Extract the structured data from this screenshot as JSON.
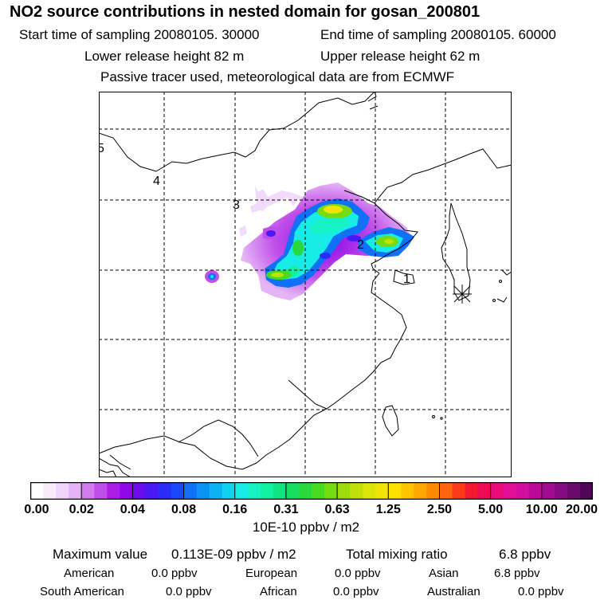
{
  "header": {
    "title": "NO2 source contributions in nested domain for gosan_200801",
    "start_label": "Start time of sampling 20080105. 30000",
    "end_label": "End time of sampling 20080105. 60000",
    "lower_label": "Lower release height   82 m",
    "upper_label": "Upper release height   62 m",
    "note": "Passive tracer used, meteorological data are from ECMWF"
  },
  "map": {
    "markers": [
      "1",
      "2",
      "3",
      "4",
      "5"
    ],
    "receptor_symbol": "star-receptor-icon"
  },
  "colorbar": {
    "ticks": [
      "0.00",
      "0.02",
      "0.04",
      "0.08",
      "0.16",
      "0.31",
      "0.63",
      "1.25",
      "2.50",
      "5.00",
      "10.00",
      "20.00"
    ],
    "units": "10E-10 ppbv / m2",
    "colors": [
      "#ffffff",
      "#f8ecfc",
      "#f0d4fa",
      "#e4b4f6",
      "#d27cf0",
      "#c04ee9",
      "#ac1ee6",
      "#8e08e8",
      "#6a0cec",
      "#4a18f2",
      "#2a2cf8",
      "#1848fa",
      "#1070f6",
      "#0a92f4",
      "#0cb2f2",
      "#10d2f0",
      "#18ece6",
      "#16f2c4",
      "#12f0a2",
      "#10e680",
      "#18de60",
      "#28d83c",
      "#48da20",
      "#74dc10",
      "#9cdc0a",
      "#c0e00a",
      "#dce408",
      "#f0e406",
      "#fee000",
      "#ffc400",
      "#ffa600",
      "#ff8a00",
      "#ff6410",
      "#fc3c18",
      "#f41830",
      "#ee0a54",
      "#ea0c78",
      "#e20e96",
      "#d20e9e",
      "#bc0a98",
      "#a20a90",
      "#860a82",
      "#6a0a6c",
      "#500656"
    ]
  },
  "summary": {
    "max_label": "Maximum value",
    "max_value": "0.113E-09 ppbv / m2",
    "total_label": "Total mixing ratio",
    "total_value": "6.8 ppbv",
    "regions": [
      {
        "name": "American",
        "value": "0.0 ppbv"
      },
      {
        "name": "European",
        "value": "0.0 ppbv"
      },
      {
        "name": "Asian",
        "value": "6.8 ppbv"
      },
      {
        "name": "South American",
        "value": "0.0 ppbv"
      },
      {
        "name": "African",
        "value": "0.0 ppbv"
      },
      {
        "name": "Australian",
        "value": "0.0 ppbv"
      }
    ]
  }
}
